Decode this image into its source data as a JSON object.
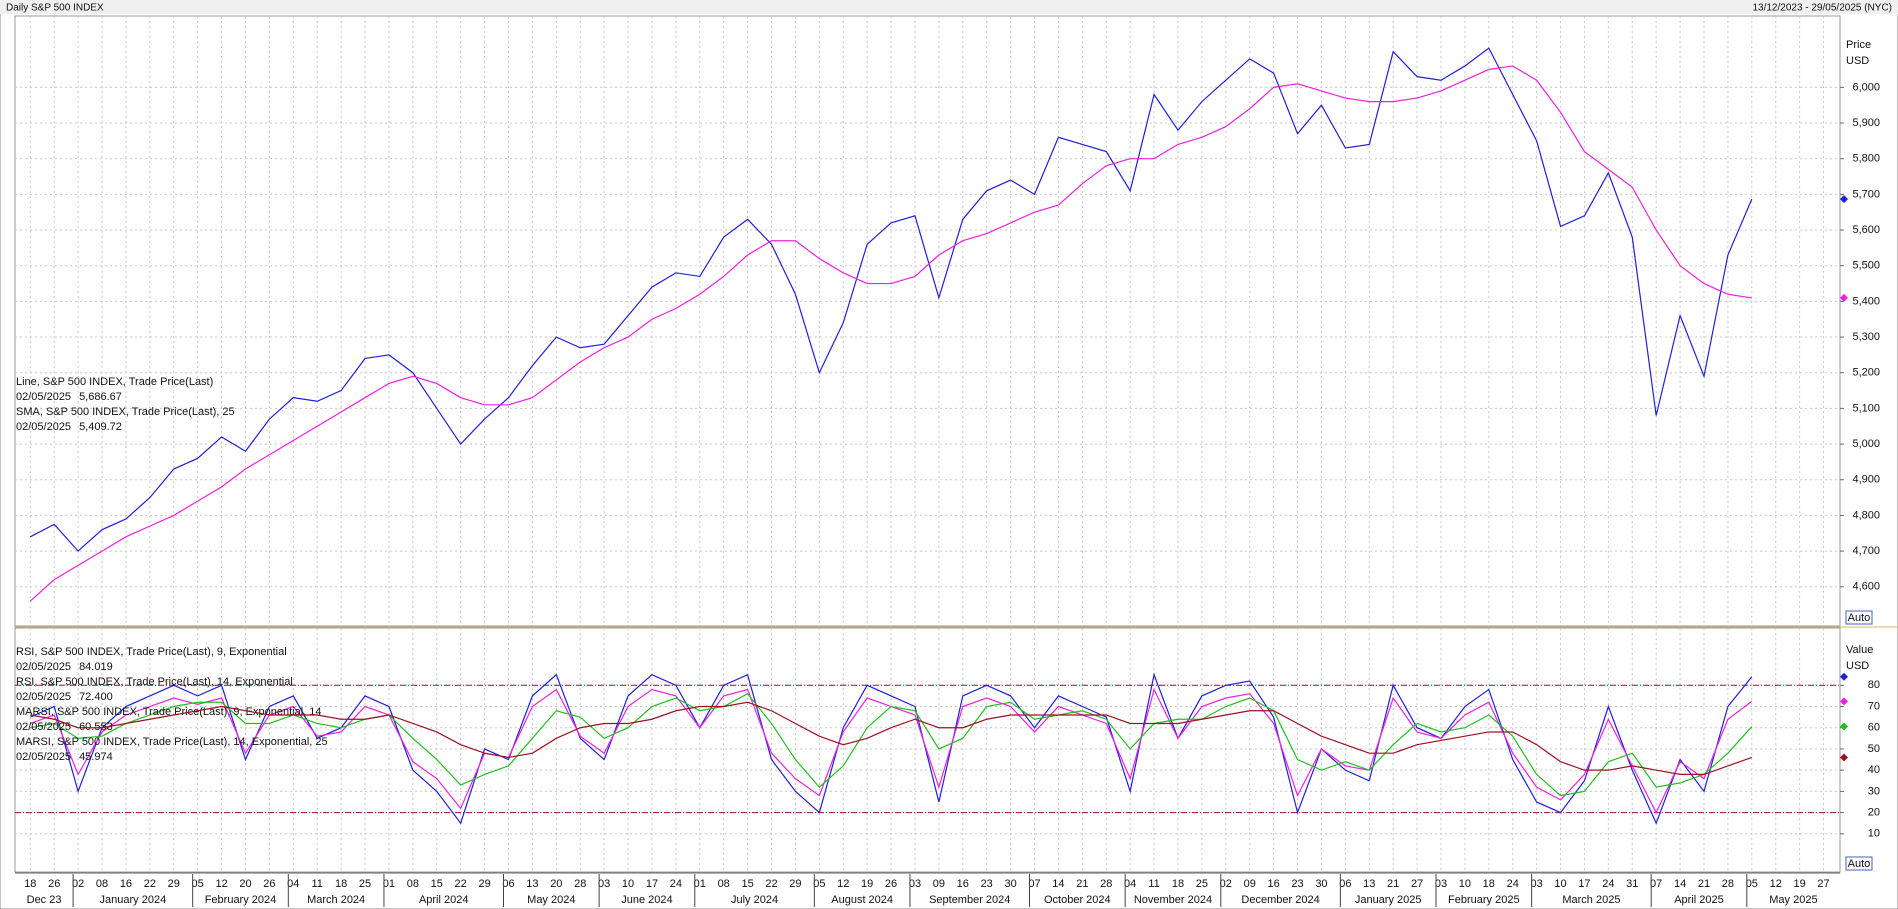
{
  "header": {
    "title": "Daily S&P 500 INDEX",
    "range": "13/12/2023 - 29/05/2025 (NYC)"
  },
  "chart_data": [
    {
      "type": "line",
      "y_label": [
        "Price",
        "USD"
      ],
      "auto_label": "Auto",
      "ylim": [
        4490,
        6200
      ],
      "grid": true,
      "yticks": [
        {
          "value": 4600,
          "label": "4,600"
        },
        {
          "value": 4700,
          "label": "4,700"
        },
        {
          "value": 4800,
          "label": "4,800"
        },
        {
          "value": 4900,
          "label": "4,900"
        },
        {
          "value": 5000,
          "label": "5,000"
        },
        {
          "value": 5100,
          "label": "5,100"
        },
        {
          "value": 5200,
          "label": "5,200"
        },
        {
          "value": 5300,
          "label": "5,300"
        },
        {
          "value": 5400,
          "label": "5,400"
        },
        {
          "value": 5500,
          "label": "5,500"
        },
        {
          "value": 5600,
          "label": "5,600"
        },
        {
          "value": 5700,
          "label": "5,700"
        },
        {
          "value": 5800,
          "label": "5,800"
        },
        {
          "value": 5900,
          "label": "5,900"
        },
        {
          "value": 6000,
          "label": "6,000"
        }
      ],
      "series": [
        {
          "name": "Line, S&P 500 INDEX, Trade Price(Last)",
          "color": "#2020d8",
          "last_date": "02/05/2025",
          "last": {
            "value": 5686.67,
            "label": "5,686.67"
          },
          "values": [
            4740,
            4775,
            4700,
            4760,
            4790,
            4850,
            4930,
            4960,
            5020,
            4980,
            5070,
            5130,
            5120,
            5150,
            5240,
            5250,
            5200,
            5100,
            5000,
            5070,
            5130,
            5220,
            5300,
            5270,
            5280,
            5360,
            5440,
            5480,
            5470,
            5580,
            5630,
            5560,
            5420,
            5200,
            5340,
            5560,
            5620,
            5640,
            5410,
            5630,
            5710,
            5740,
            5700,
            5860,
            5840,
            5820,
            5710,
            5980,
            5880,
            5960,
            6020,
            6080,
            6040,
            5870,
            5950,
            5830,
            5840,
            6100,
            6030,
            6020,
            6060,
            6110,
            5980,
            5850,
            5610,
            5640,
            5760,
            5580,
            5080,
            5360,
            5190,
            5530,
            5686.67,
            null,
            null,
            null
          ]
        },
        {
          "name": "SMA, S&P 500 INDEX, Trade Price(Last),  25",
          "color": "#f020e0",
          "last_date": "02/05/2025",
          "last": {
            "value": 5409.72,
            "label": "5,409.72"
          },
          "values": [
            4560,
            4620,
            4660,
            4700,
            4740,
            4770,
            4800,
            4840,
            4880,
            4930,
            4970,
            5010,
            5050,
            5090,
            5130,
            5170,
            5190,
            5170,
            5130,
            5110,
            5110,
            5130,
            5180,
            5230,
            5270,
            5300,
            5350,
            5380,
            5420,
            5470,
            5530,
            5570,
            5570,
            5520,
            5480,
            5450,
            5450,
            5470,
            5530,
            5570,
            5590,
            5620,
            5650,
            5670,
            5730,
            5780,
            5800,
            5800,
            5840,
            5860,
            5890,
            5940,
            6000,
            6010,
            5990,
            5970,
            5960,
            5960,
            5970,
            5990,
            6020,
            6050,
            6060,
            6020,
            5930,
            5820,
            5770,
            5720,
            5600,
            5500,
            5450,
            5420,
            5409.72,
            null,
            null,
            null
          ]
        }
      ]
    },
    {
      "type": "line",
      "y_label": [
        "Value",
        "USD"
      ],
      "auto_label": "Auto",
      "ylim": [
        -8,
        107
      ],
      "grid": true,
      "yticks": [
        10,
        20,
        30,
        40,
        50,
        60,
        70,
        80
      ],
      "reference_lines": [
        20,
        80
      ],
      "reference_color": "#9a1040",
      "categories": [
        "18",
        "26",
        "02",
        "08",
        "16",
        "22",
        "29",
        "05",
        "12",
        "20",
        "26",
        "04",
        "11",
        "18",
        "25",
        "01",
        "08",
        "15",
        "22",
        "29",
        "06",
        "13",
        "20",
        "28",
        "03",
        "10",
        "17",
        "24",
        "01",
        "08",
        "15",
        "22",
        "29",
        "05",
        "12",
        "19",
        "26",
        "03",
        "09",
        "16",
        "23",
        "30",
        "07",
        "14",
        "21",
        "28",
        "04",
        "11",
        "18",
        "25",
        "02",
        "09",
        "16",
        "23",
        "30",
        "06",
        "13",
        "21",
        "27",
        "03",
        "10",
        "18",
        "24",
        "03",
        "10",
        "17",
        "24",
        "31",
        "07",
        "14",
        "21",
        "28",
        "05",
        "12",
        "19",
        "27"
      ],
      "months": [
        "Dec 23",
        "January 2024",
        "February 2024",
        "March 2024",
        "April 2024",
        "May 2024",
        "June 2024",
        "July 2024",
        "August 2024",
        "September 2024",
        "October 2024",
        "November 2024",
        "December 2024",
        "January 2025",
        "February 2025",
        "March 2025",
        "April 2025",
        "May 2025"
      ],
      "series": [
        {
          "name": "RSI, S&P 500 INDEX, Trade Price(Last),  9, Exponential",
          "color": "#2020d8",
          "last_date": "02/05/2025",
          "last": 84.019,
          "values": [
            65,
            70,
            30,
            60,
            70,
            75,
            80,
            75,
            80,
            45,
            70,
            75,
            55,
            60,
            75,
            70,
            40,
            30,
            15,
            50,
            45,
            75,
            85,
            55,
            45,
            75,
            85,
            80,
            60,
            80,
            85,
            45,
            30,
            20,
            60,
            80,
            75,
            70,
            25,
            75,
            80,
            75,
            60,
            75,
            70,
            65,
            30,
            85,
            55,
            75,
            80,
            82,
            65,
            20,
            50,
            40,
            35,
            80,
            60,
            55,
            70,
            78,
            45,
            25,
            20,
            35,
            70,
            40,
            15,
            45,
            30,
            70,
            84.019,
            null,
            null,
            null
          ]
        },
        {
          "name": "RSI, S&P 500 INDEX, Trade Price(Last),  14, Exponential",
          "color": "#f020e0",
          "last_date": "02/05/2025",
          "last": {
            "value": 72.4,
            "label": "72.400"
          },
          "values": [
            62,
            66,
            38,
            58,
            66,
            70,
            74,
            71,
            74,
            48,
            66,
            70,
            56,
            58,
            70,
            66,
            44,
            36,
            22,
            48,
            46,
            70,
            78,
            56,
            48,
            70,
            78,
            75,
            60,
            75,
            78,
            48,
            36,
            28,
            58,
            74,
            70,
            66,
            32,
            70,
            74,
            70,
            58,
            70,
            66,
            62,
            36,
            78,
            55,
            70,
            74,
            76,
            62,
            28,
            50,
            42,
            40,
            74,
            58,
            55,
            66,
            72,
            48,
            32,
            26,
            38,
            64,
            42,
            20,
            44,
            36,
            64,
            72.4,
            null,
            null,
            null
          ]
        },
        {
          "name": "MARSI, S&P 500 INDEX, Trade Price(Last),  9, Exponential, 14",
          "color": "#20c020",
          "last_date": "02/05/2025",
          "last": 60.553,
          "values": [
            60,
            62,
            55,
            56,
            62,
            66,
            70,
            72,
            72,
            62,
            62,
            66,
            62,
            60,
            64,
            66,
            55,
            45,
            33,
            38,
            42,
            55,
            68,
            65,
            55,
            60,
            70,
            74,
            68,
            70,
            76,
            62,
            45,
            32,
            42,
            60,
            70,
            68,
            50,
            55,
            70,
            72,
            64,
            66,
            68,
            64,
            50,
            62,
            64,
            64,
            70,
            74,
            68,
            45,
            40,
            44,
            40,
            52,
            62,
            58,
            60,
            66,
            56,
            38,
            28,
            30,
            44,
            48,
            32,
            34,
            38,
            48,
            60.553,
            null,
            null,
            null
          ]
        },
        {
          "name": "MARSI, S&P 500 INDEX, Trade Price(Last),  14, Exponential, 25",
          "color": "#a01020",
          "last_date": "02/05/2025",
          "last": 45.974,
          "values": [
            66,
            64,
            60,
            60,
            62,
            64,
            66,
            68,
            70,
            68,
            66,
            66,
            66,
            64,
            64,
            66,
            62,
            58,
            52,
            48,
            46,
            48,
            55,
            60,
            62,
            62,
            64,
            68,
            70,
            70,
            72,
            68,
            62,
            56,
            52,
            55,
            60,
            64,
            60,
            60,
            64,
            66,
            66,
            66,
            66,
            66,
            62,
            62,
            62,
            64,
            66,
            68,
            68,
            62,
            56,
            52,
            48,
            48,
            52,
            54,
            56,
            58,
            58,
            52,
            44,
            40,
            40,
            42,
            40,
            38,
            38,
            42,
            45.974,
            null,
            null,
            null
          ]
        }
      ]
    }
  ]
}
